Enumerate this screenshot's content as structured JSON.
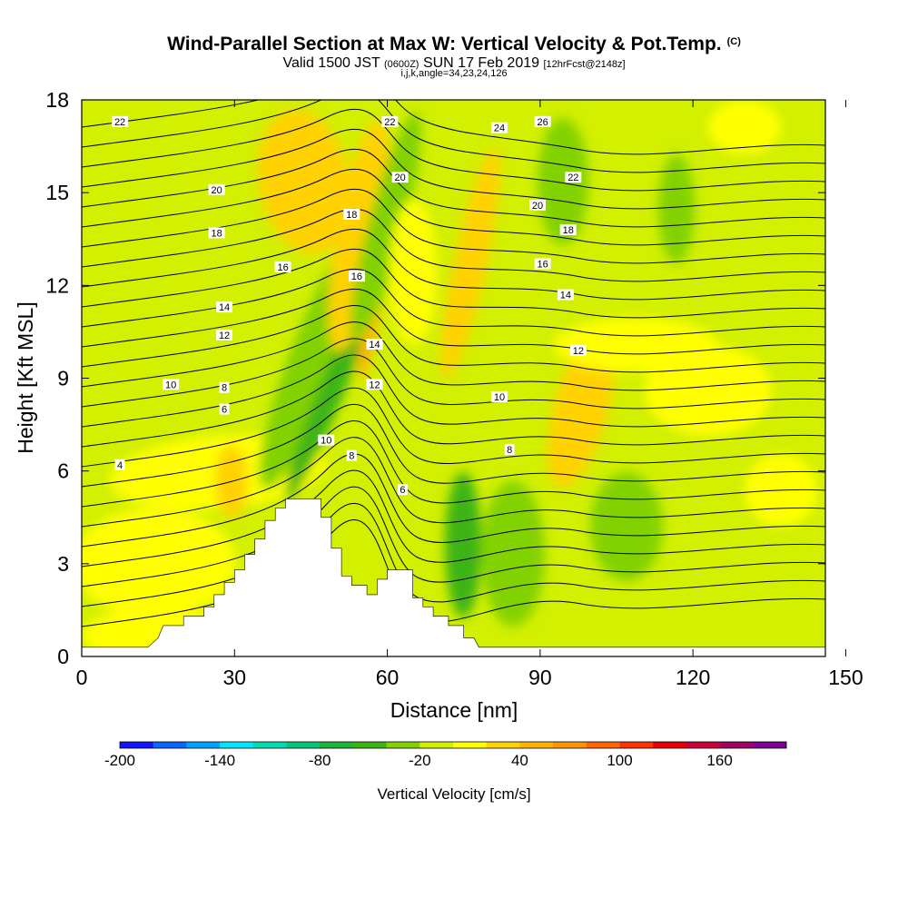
{
  "header": {
    "title": "Wind-Parallel Section at Max W: Vertical Velocity & Pot.Temp.",
    "copyright": "(C)",
    "subtitle_a": "Valid 1500 JST",
    "subtitle_b": "(0600Z)",
    "subtitle_c": "SUN 17 Feb 2019",
    "subtitle_d": "[12hrFcst@2148z]",
    "params": "i,j,k,angle=34,23,24,126"
  },
  "chart_data": {
    "type": "heatmap",
    "title": "Wind-Parallel Section at Max W: Vertical Velocity & Pot.Temp.",
    "xlabel": "Distance [nm]",
    "ylabel": "Height [Kft MSL]",
    "xlim": [
      0,
      146
    ],
    "ylim": [
      0,
      18
    ],
    "x_ticks": [
      "0",
      "30",
      "60",
      "90",
      "120",
      "150"
    ],
    "y_ticks": [
      "0",
      "3",
      "6",
      "9",
      "12",
      "15",
      "18"
    ],
    "colorbar": {
      "label": "Vertical Velocity [cm/s]",
      "ticks": [
        "-200",
        "-140",
        "-80",
        "-20",
        "40",
        "100",
        "160"
      ],
      "range": [
        -200,
        200
      ],
      "colors": [
        "#1414ff",
        "#0a64ff",
        "#00a0ff",
        "#00e6ff",
        "#00dcb4",
        "#00c878",
        "#1eb43c",
        "#3cb414",
        "#82d200",
        "#d2f000",
        "#ffff00",
        "#ffd200",
        "#ffb400",
        "#ff9600",
        "#ff6400",
        "#ff3200",
        "#e60000",
        "#c8003c",
        "#a00064",
        "#7d0096"
      ]
    },
    "terrain": [
      [
        0,
        0.3
      ],
      [
        13,
        0.3
      ],
      [
        15,
        0.6
      ],
      [
        16,
        1.0
      ],
      [
        20,
        1.0
      ],
      [
        20,
        1.3
      ],
      [
        24,
        1.3
      ],
      [
        24,
        1.6
      ],
      [
        26,
        1.6
      ],
      [
        26,
        2.0
      ],
      [
        28,
        2.0
      ],
      [
        28,
        2.4
      ],
      [
        30,
        2.4
      ],
      [
        30,
        2.8
      ],
      [
        32,
        2.8
      ],
      [
        32,
        3.3
      ],
      [
        34,
        3.3
      ],
      [
        34,
        3.8
      ],
      [
        36,
        3.8
      ],
      [
        36,
        4.4
      ],
      [
        38,
        4.4
      ],
      [
        38,
        4.8
      ],
      [
        40,
        4.8
      ],
      [
        40,
        5.1
      ],
      [
        47,
        5.1
      ],
      [
        47,
        4.5
      ],
      [
        49,
        4.5
      ],
      [
        49,
        3.5
      ],
      [
        51,
        3.5
      ],
      [
        51,
        2.6
      ],
      [
        53,
        2.6
      ],
      [
        53,
        2.3
      ],
      [
        56,
        2.3
      ],
      [
        56,
        2.0
      ],
      [
        58,
        2.0
      ],
      [
        58,
        2.5
      ],
      [
        60,
        2.5
      ],
      [
        60,
        2.8
      ],
      [
        65,
        2.8
      ],
      [
        65,
        1.9
      ],
      [
        67,
        1.9
      ],
      [
        67,
        1.6
      ],
      [
        69,
        1.6
      ],
      [
        69,
        1.3
      ],
      [
        72,
        1.3
      ],
      [
        72,
        1.0
      ],
      [
        75,
        1.0
      ],
      [
        75,
        0.6
      ],
      [
        77,
        0.6
      ],
      [
        78,
        0.3
      ],
      [
        146,
        0.3
      ]
    ],
    "theta_contour_labels": [
      {
        "x": 7.5,
        "y": 17.3,
        "label": "22"
      },
      {
        "x": 60.5,
        "y": 17.3,
        "label": "22"
      },
      {
        "x": 82,
        "y": 17.1,
        "label": "24"
      },
      {
        "x": 90.5,
        "y": 17.3,
        "label": "26"
      },
      {
        "x": 26.5,
        "y": 15.1,
        "label": "20"
      },
      {
        "x": 62.5,
        "y": 15.5,
        "label": "20"
      },
      {
        "x": 96.5,
        "y": 15.5,
        "label": "22"
      },
      {
        "x": 89.5,
        "y": 14.6,
        "label": "20"
      },
      {
        "x": 53,
        "y": 14.3,
        "label": "18"
      },
      {
        "x": 95.5,
        "y": 13.8,
        "label": "18"
      },
      {
        "x": 26.5,
        "y": 13.7,
        "label": "18"
      },
      {
        "x": 39.5,
        "y": 12.6,
        "label": "16"
      },
      {
        "x": 54,
        "y": 12.3,
        "label": "16"
      },
      {
        "x": 90.5,
        "y": 12.7,
        "label": "16"
      },
      {
        "x": 28,
        "y": 11.3,
        "label": "14"
      },
      {
        "x": 95,
        "y": 11.7,
        "label": "14"
      },
      {
        "x": 57.5,
        "y": 10.1,
        "label": "14"
      },
      {
        "x": 28,
        "y": 10.4,
        "label": "12"
      },
      {
        "x": 97.5,
        "y": 9.9,
        "label": "12"
      },
      {
        "x": 57.5,
        "y": 8.8,
        "label": "12"
      },
      {
        "x": 17.5,
        "y": 8.8,
        "label": "10"
      },
      {
        "x": 28,
        "y": 8.7,
        "label": "8"
      },
      {
        "x": 28,
        "y": 8.0,
        "label": "6"
      },
      {
        "x": 82,
        "y": 8.4,
        "label": "10"
      },
      {
        "x": 48,
        "y": 7.0,
        "label": "10"
      },
      {
        "x": 53,
        "y": 6.5,
        "label": "8"
      },
      {
        "x": 84,
        "y": 6.7,
        "label": "8"
      },
      {
        "x": 7.5,
        "y": 6.2,
        "label": "4"
      },
      {
        "x": 63,
        "y": 5.4,
        "label": "6"
      }
    ]
  }
}
